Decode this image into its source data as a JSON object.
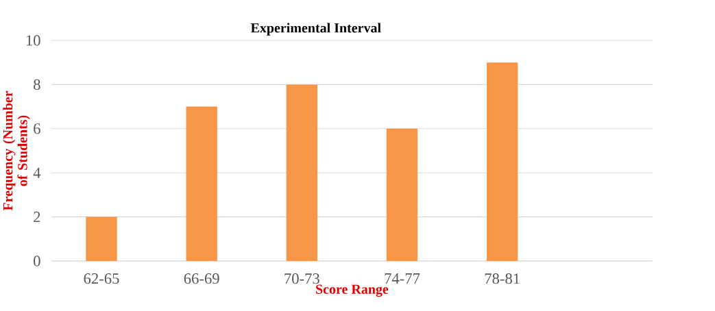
{
  "chart_data": {
    "type": "bar",
    "title": "Experimental Interval",
    "xlabel": "Score Range",
    "ylabel": "Frequency (Number of Students)",
    "categories": [
      "62-65",
      "66-69",
      "70-73",
      "74-77",
      "78-81",
      null
    ],
    "values": [
      2,
      7,
      8,
      6,
      9,
      null
    ],
    "color": "#f79646",
    "ylim": [
      0,
      10
    ],
    "yticks": [
      0,
      2,
      4,
      6,
      8,
      10
    ],
    "grid": "y"
  }
}
